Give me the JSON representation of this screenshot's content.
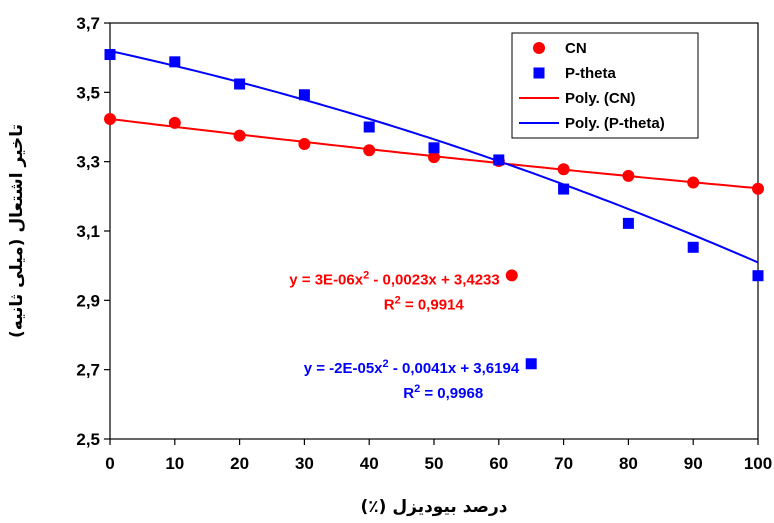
{
  "chart_data": {
    "type": "scatter",
    "title": "",
    "xlabel": "درصد بیودیزل (٪)",
    "ylabel": "تاخیر اشتعال (میلی ثانیه)",
    "xlim": [
      0,
      100
    ],
    "ylim": [
      2.5,
      3.7
    ],
    "x_ticks": [
      "0",
      "10",
      "20",
      "30",
      "40",
      "50",
      "60",
      "70",
      "80",
      "90",
      "100"
    ],
    "y_ticks": [
      "2,5",
      "2,7",
      "2,9",
      "3,1",
      "3,3",
      "3,5",
      "3,7"
    ],
    "grid": false,
    "legend_position": "top-right",
    "series": [
      {
        "name": "CN",
        "marker": "circle",
        "color": "#ff0000",
        "x": [
          0,
          10,
          20,
          30,
          40,
          50,
          60,
          70,
          80,
          90,
          100
        ],
        "y": [
          3.423,
          3.412,
          3.375,
          3.351,
          3.333,
          3.313,
          3.302,
          3.278,
          3.259,
          3.24,
          3.222
        ]
      },
      {
        "name": "P-theta",
        "marker": "square",
        "color": "#0000ff",
        "x": [
          0,
          10,
          20,
          30,
          40,
          50,
          60,
          70,
          80,
          90,
          100
        ],
        "y": [
          3.609,
          3.588,
          3.524,
          3.493,
          3.4,
          3.34,
          3.305,
          3.221,
          3.122,
          3.053,
          2.971
        ]
      }
    ],
    "trendlines": [
      {
        "name": "Poly. (CN)",
        "color": "#ff0000",
        "coefficients": [
          3e-06,
          -0.0023,
          3.4233
        ]
      },
      {
        "name": "Poly. (P-theta)",
        "color": "#0000ff",
        "coefficients": [
          -2e-05,
          -0.0041,
          3.6194
        ]
      }
    ],
    "annotations": [
      {
        "color": "#ff0000",
        "equation_parts": [
          "y = 3E-06x",
          "2",
          " - 0,0023x + 3,4233"
        ],
        "r2_parts": [
          "R",
          "2",
          " = 0,9914"
        ],
        "marker": "circle",
        "marker_x": 62,
        "marker_y": 2.972
      },
      {
        "color": "#0000ff",
        "equation_parts": [
          "y = -2E-05x",
          "2",
          " - 0,0041x + 3,6194"
        ],
        "r2_parts": [
          "R",
          "2",
          " = 0,9968"
        ],
        "marker": "square",
        "marker_x": 65,
        "marker_y": 2.717
      }
    ]
  }
}
